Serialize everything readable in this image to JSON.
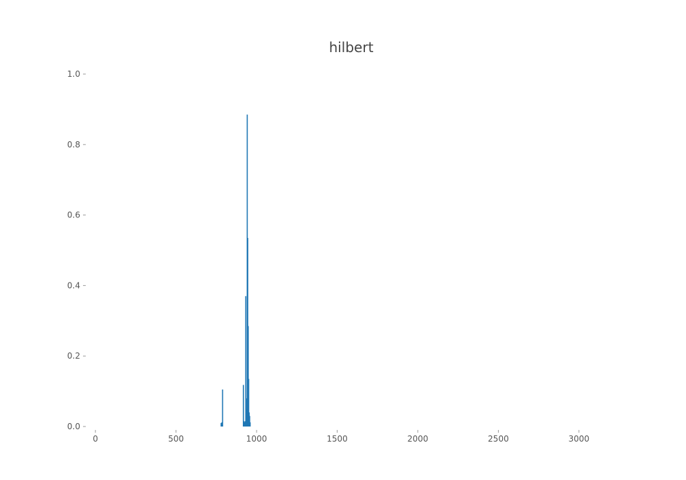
{
  "chart_data": {
    "type": "bar",
    "title": "hilbert",
    "xlabel": "",
    "ylabel": "",
    "xlim": [
      -60,
      3260
    ],
    "ylim": [
      0,
      1.0
    ],
    "x_ticks": [
      0,
      500,
      1000,
      1500,
      2000,
      2500,
      3000
    ],
    "x_tick_labels": [
      "0",
      "500",
      "1000",
      "1500",
      "2000",
      "2500",
      "3000"
    ],
    "y_ticks": [
      0.0,
      0.2,
      0.4,
      0.6,
      0.8,
      1.0
    ],
    "y_tick_labels": [
      "0.0",
      "0.2",
      "0.4",
      "0.6",
      "0.8",
      "1.0"
    ],
    "grid": false,
    "color": "#1f77b4",
    "bars": [
      {
        "x": 780,
        "y": 0.01
      },
      {
        "x": 785,
        "y": 0.012
      },
      {
        "x": 789,
        "y": 0.105
      },
      {
        "x": 918,
        "y": 0.118
      },
      {
        "x": 922,
        "y": 0.015
      },
      {
        "x": 926,
        "y": 0.012
      },
      {
        "x": 930,
        "y": 0.015
      },
      {
        "x": 933,
        "y": 0.37
      },
      {
        "x": 936,
        "y": 0.08
      },
      {
        "x": 939,
        "y": 0.05
      },
      {
        "x": 942,
        "y": 0.885
      },
      {
        "x": 945,
        "y": 0.535
      },
      {
        "x": 948,
        "y": 0.285
      },
      {
        "x": 951,
        "y": 0.135
      },
      {
        "x": 954,
        "y": 0.04
      },
      {
        "x": 957,
        "y": 0.03
      },
      {
        "x": 960,
        "y": 0.012
      }
    ]
  }
}
